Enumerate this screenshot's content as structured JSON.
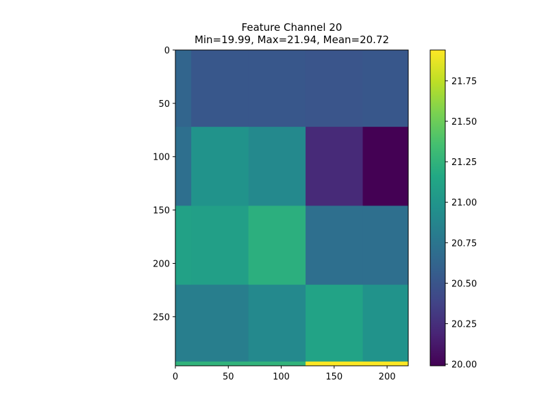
{
  "chart_data": {
    "type": "heatmap",
    "title": "Feature Channel 20",
    "subtitle": "Min=19.99, Max=21.94, Mean=20.72",
    "xlim": [
      0,
      220
    ],
    "ylim": [
      296,
      0
    ],
    "x_ticks": [
      0,
      50,
      100,
      150,
      200
    ],
    "y_ticks": [
      0,
      50,
      100,
      150,
      200,
      250
    ],
    "colormap": "viridis",
    "colorbar": {
      "min": 19.99,
      "max": 21.94,
      "ticks": [
        "20.00",
        "20.25",
        "20.50",
        "20.75",
        "21.00",
        "21.25",
        "21.50",
        "21.75"
      ]
    },
    "cells": [
      {
        "x": [
          0,
          15
        ],
        "y": [
          0,
          72
        ],
        "value": 20.62
      },
      {
        "x": [
          15,
          69
        ],
        "y": [
          0,
          72
        ],
        "value": 20.52
      },
      {
        "x": [
          69,
          123
        ],
        "y": [
          0,
          72
        ],
        "value": 20.52
      },
      {
        "x": [
          123,
          177
        ],
        "y": [
          0,
          72
        ],
        "value": 20.5
      },
      {
        "x": [
          177,
          220
        ],
        "y": [
          0,
          72
        ],
        "value": 20.52
      },
      {
        "x": [
          0,
          15
        ],
        "y": [
          72,
          146
        ],
        "value": 20.7
      },
      {
        "x": [
          15,
          69
        ],
        "y": [
          72,
          146
        ],
        "value": 20.98
      },
      {
        "x": [
          69,
          123
        ],
        "y": [
          72,
          146
        ],
        "value": 20.9
      },
      {
        "x": [
          123,
          177
        ],
        "y": [
          72,
          146
        ],
        "value": 20.22
      },
      {
        "x": [
          177,
          220
        ],
        "y": [
          72,
          146
        ],
        "value": 19.99
      },
      {
        "x": [
          0,
          15
        ],
        "y": [
          146,
          220
        ],
        "value": 21.1
      },
      {
        "x": [
          15,
          69
        ],
        "y": [
          146,
          220
        ],
        "value": 21.08
      },
      {
        "x": [
          69,
          123
        ],
        "y": [
          146,
          220
        ],
        "value": 21.22
      },
      {
        "x": [
          123,
          177
        ],
        "y": [
          146,
          220
        ],
        "value": 20.7
      },
      {
        "x": [
          177,
          220
        ],
        "y": [
          146,
          220
        ],
        "value": 20.7
      },
      {
        "x": [
          0,
          15
        ],
        "y": [
          220,
          292
        ],
        "value": 20.82
      },
      {
        "x": [
          15,
          69
        ],
        "y": [
          220,
          292
        ],
        "value": 20.82
      },
      {
        "x": [
          69,
          123
        ],
        "y": [
          220,
          292
        ],
        "value": 20.9
      },
      {
        "x": [
          123,
          177
        ],
        "y": [
          220,
          292
        ],
        "value": 21.12
      },
      {
        "x": [
          177,
          220
        ],
        "y": [
          220,
          292
        ],
        "value": 20.98
      },
      {
        "x": [
          0,
          123
        ],
        "y": [
          292,
          296
        ],
        "value": 21.25
      },
      {
        "x": [
          123,
          220
        ],
        "y": [
          292,
          296
        ],
        "value": 21.94
      }
    ]
  }
}
